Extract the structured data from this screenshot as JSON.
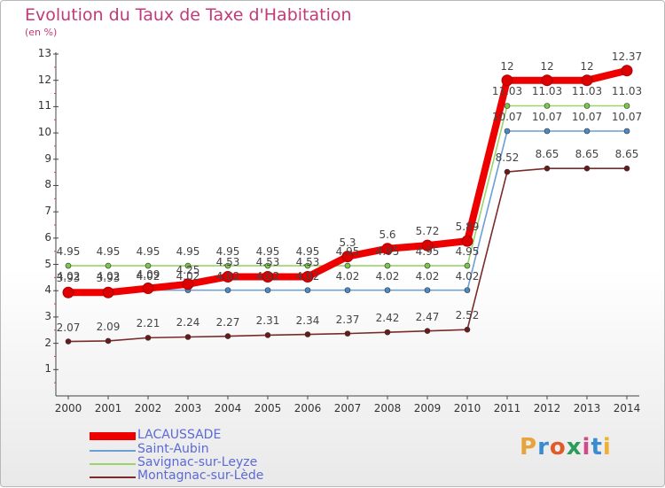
{
  "title": "Evolution du Taux de Taxe d'Habitation",
  "unit": "(en %)",
  "logo": {
    "text": "Proxiti",
    "colors": [
      "#e8a33a",
      "#3a8cd1",
      "#e05a2a",
      "#2a9d5c",
      "#d04a8a",
      "#3a8cd1",
      "#f0b030"
    ]
  },
  "legend": [
    {
      "name": "LACAUSSADE",
      "color": "#ee0000"
    },
    {
      "name": "Saint-Aubin",
      "color": "#6a9fd4"
    },
    {
      "name": "Savignac-sur-Leyze",
      "color": "#9ad46a"
    },
    {
      "name": "Montagnac-sur-Lède",
      "color": "#7a2a2a"
    }
  ],
  "chart_data": {
    "type": "line",
    "title": "Evolution du Taux de Taxe d'Habitation",
    "ylabel": "(en %)",
    "xlabel": "",
    "ylim": [
      1,
      13
    ],
    "yticks": [
      "1",
      "2",
      "3",
      "4",
      "5",
      "6",
      "7",
      "8",
      "9",
      "10",
      "11",
      "12",
      "13"
    ],
    "categories": [
      "2000",
      "2001",
      "2002",
      "2003",
      "2004",
      "2005",
      "2006",
      "2007",
      "2008",
      "2009",
      "2010",
      "2011",
      "2012",
      "2013",
      "2014"
    ],
    "series": [
      {
        "name": "LACAUSSADE",
        "color": "#ee0000",
        "marker": "#dd0000",
        "values": [
          3.93,
          3.93,
          4.09,
          4.25,
          4.53,
          4.53,
          4.53,
          5.3,
          5.6,
          5.72,
          5.89,
          12,
          12,
          12,
          12.37
        ],
        "labels": [
          "3.93",
          "3.93",
          "4.09",
          "4.25",
          "4.53",
          "4.53",
          "4.53",
          "5.3",
          "5.6",
          "5.72",
          "5.89",
          "12",
          "12",
          "12",
          "12.37"
        ]
      },
      {
        "name": "Saint-Aubin",
        "color": "#6a9fd4",
        "marker": "#4a8ac6",
        "values": [
          4.02,
          4.02,
          4.02,
          4.02,
          4.02,
          4.02,
          4.02,
          4.02,
          4.02,
          4.02,
          4.02,
          10.07,
          10.07,
          10.07,
          10.07
        ],
        "labels": [
          "4.02",
          "4.02",
          "4.02",
          "4.02",
          "4.02",
          "4.02",
          "4.02",
          "4.02",
          "4.02",
          "4.02",
          "4.02",
          "10.07",
          "10.07",
          "10.07",
          "10.07"
        ]
      },
      {
        "name": "Savignac-sur-Leyze",
        "color": "#9ad46a",
        "marker": "#7ac84a",
        "values": [
          4.95,
          4.95,
          4.95,
          4.95,
          4.95,
          4.95,
          4.95,
          4.95,
          4.95,
          4.95,
          4.95,
          11.03,
          11.03,
          11.03,
          11.03
        ],
        "labels": [
          "4.95",
          "4.95",
          "4.95",
          "4.95",
          "4.95",
          "4.95",
          "4.95",
          "4.95",
          "4.95",
          "4.95",
          "4.95",
          "11.03",
          "11.03",
          "11.03",
          "11.03"
        ]
      },
      {
        "name": "Montagnac-sur-Lède",
        "color": "#7a2a2a",
        "marker": "#6a1a1a",
        "values": [
          2.07,
          2.09,
          2.21,
          2.24,
          2.27,
          2.31,
          2.34,
          2.37,
          2.42,
          2.47,
          2.52,
          8.52,
          8.65,
          8.65,
          8.65
        ],
        "labels": [
          "2.07",
          "2.09",
          "2.21",
          "2.24",
          "2.27",
          "2.31",
          "2.34",
          "2.37",
          "2.42",
          "2.47",
          "2.52",
          "8.52",
          "8.65",
          "8.65",
          "8.65"
        ]
      }
    ]
  }
}
